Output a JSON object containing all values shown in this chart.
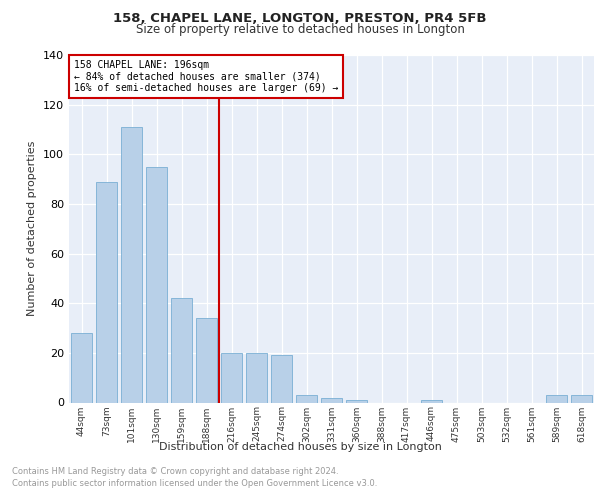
{
  "title1": "158, CHAPEL LANE, LONGTON, PRESTON, PR4 5FB",
  "title2": "Size of property relative to detached houses in Longton",
  "xlabel": "Distribution of detached houses by size in Longton",
  "ylabel": "Number of detached properties",
  "categories": [
    "44sqm",
    "73sqm",
    "101sqm",
    "130sqm",
    "159sqm",
    "188sqm",
    "216sqm",
    "245sqm",
    "274sqm",
    "302sqm",
    "331sqm",
    "360sqm",
    "388sqm",
    "417sqm",
    "446sqm",
    "475sqm",
    "503sqm",
    "532sqm",
    "561sqm",
    "589sqm",
    "618sqm"
  ],
  "values": [
    28,
    89,
    111,
    95,
    42,
    34,
    20,
    20,
    19,
    3,
    2,
    1,
    0,
    0,
    1,
    0,
    0,
    0,
    0,
    3,
    3
  ],
  "bar_color": "#b8d0e8",
  "bar_edgecolor": "#7aafd4",
  "vline_color": "#cc0000",
  "annotation_title": "158 CHAPEL LANE: 196sqm",
  "annotation_line1": "← 84% of detached houses are smaller (374)",
  "annotation_line2": "16% of semi-detached houses are larger (69) →",
  "annotation_box_edgecolor": "#cc0000",
  "ylim": [
    0,
    140
  ],
  "yticks": [
    0,
    20,
    40,
    60,
    80,
    100,
    120,
    140
  ],
  "footer1": "Contains HM Land Registry data © Crown copyright and database right 2024.",
  "footer2": "Contains public sector information licensed under the Open Government Licence v3.0.",
  "plot_bg_color": "#e8eef8"
}
